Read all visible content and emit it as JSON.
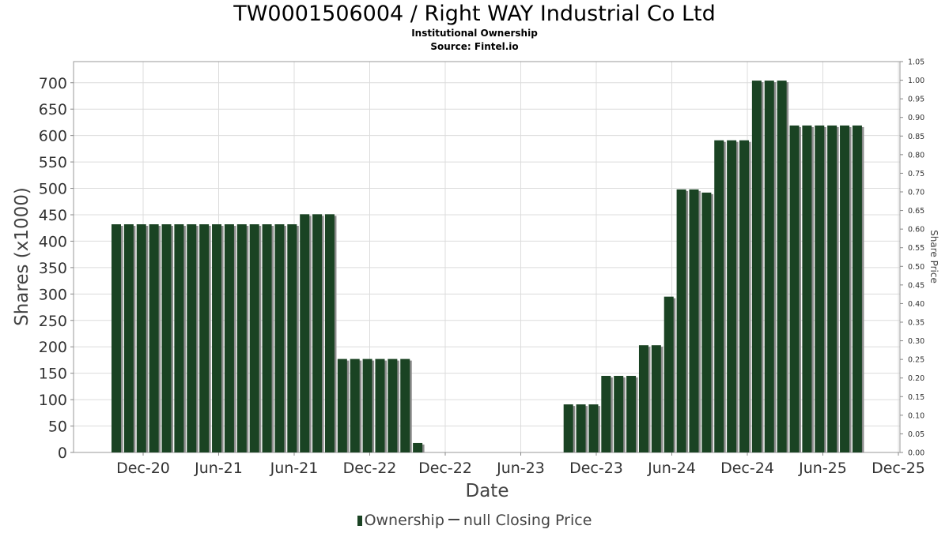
{
  "title": "TW0001506004 / Right WAY Industrial Co Ltd",
  "subtitle": "Institutional Ownership",
  "source": "Source: Fintel.io",
  "legend": {
    "ownership_label": "Ownership",
    "price_label": "null Closing Price"
  },
  "colors": {
    "bar": "#1a4323",
    "bar_shadow": "#8c8c8c",
    "grid": "#dcdcdc",
    "axis": "#888888"
  },
  "chart_data": {
    "type": "bar",
    "xlabel": "Date",
    "ylabel": "Shares (x1000)",
    "y2label": "Share Price",
    "x_ticks": [
      "Dec-20",
      "Jun-21",
      "Jun-21",
      "Dec-22",
      "Dec-22",
      "Jun-23",
      "Dec-23",
      "Jun-24",
      "Dec-24",
      "Jun-25",
      "Dec-25"
    ],
    "ylim": [
      0,
      740
    ],
    "y_ticks": [
      0,
      50,
      100,
      150,
      200,
      250,
      300,
      350,
      400,
      450,
      500,
      550,
      600,
      650,
      700
    ],
    "y2lim": [
      0,
      1.05
    ],
    "y2_ticks": [
      "0.00",
      "0.05",
      "0.10",
      "0.15",
      "0.20",
      "0.25",
      "0.30",
      "0.35",
      "0.40",
      "0.45",
      "0.50",
      "0.55",
      "0.60",
      "0.65",
      "0.70",
      "0.75",
      "0.80",
      "0.85",
      "0.90",
      "0.95",
      "1.00",
      "1.05"
    ],
    "grid": true,
    "series": [
      {
        "name": "Ownership",
        "values": [
          432,
          432,
          432,
          432,
          432,
          432,
          432,
          432,
          432,
          432,
          432,
          432,
          432,
          432,
          432,
          451,
          451,
          451,
          177,
          177,
          177,
          177,
          177,
          177,
          18,
          0,
          0,
          0,
          0,
          0,
          0,
          0,
          0,
          0,
          0,
          0,
          91,
          91,
          91,
          145,
          145,
          145,
          203,
          203,
          295,
          498,
          498,
          492,
          591,
          591,
          591,
          704,
          704,
          704,
          619,
          619,
          619,
          619,
          619,
          619
        ]
      }
    ]
  }
}
